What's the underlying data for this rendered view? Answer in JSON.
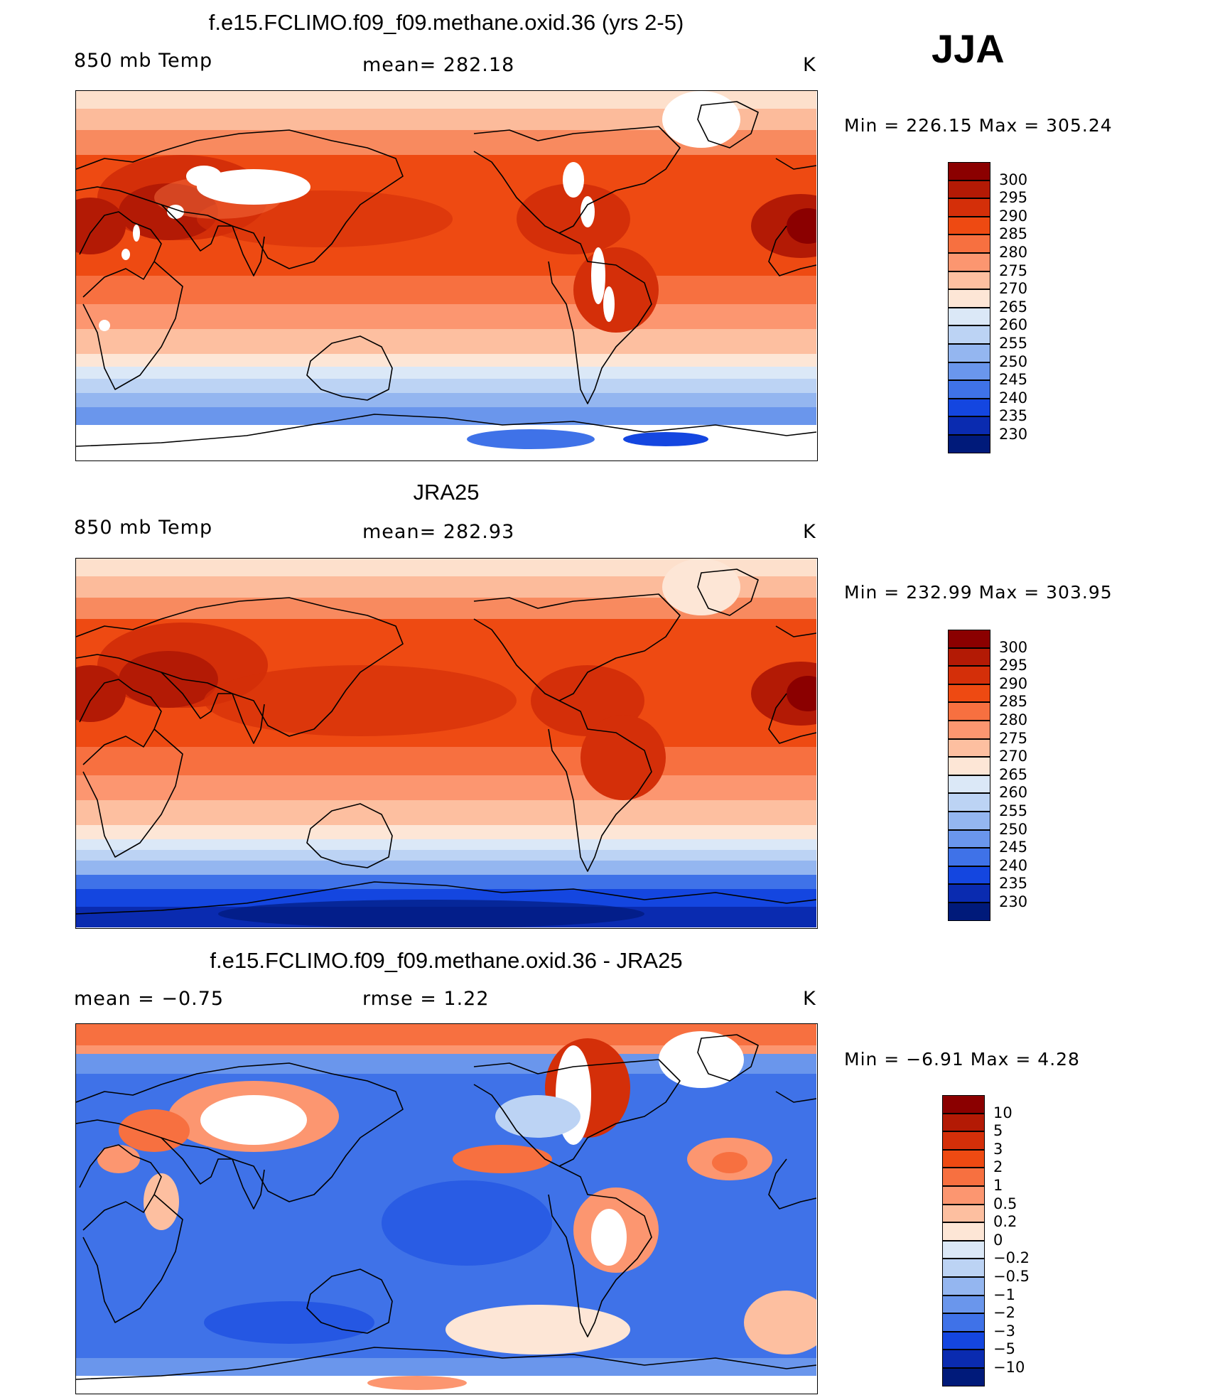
{
  "season": "JJA",
  "panels": [
    {
      "title": "f.e15.FCLIMO.f09_f09.methane.oxid.36 (yrs 2-5)",
      "left_label": "850 mb Temp",
      "center_label": "mean=  282.18",
      "right_label": "K",
      "minmax": "Min  =  226.15  Max  =  305.24",
      "colorbar": {
        "labels": [
          "300",
          "295",
          "290",
          "285",
          "280",
          "275",
          "270",
          "265",
          "260",
          "255",
          "250",
          "245",
          "240",
          "235",
          "230"
        ],
        "colors": [
          "#8b0000",
          "#b31a05",
          "#d42f09",
          "#ee4a12",
          "#f77040",
          "#fc9670",
          "#fdbfa0",
          "#fde6d6",
          "#dbe8f7",
          "#bcd3f4",
          "#94b6f0",
          "#6a96ec",
          "#3f72e8",
          "#1446e0",
          "#0a2bb0",
          "#001a7a"
        ]
      },
      "map_type": "model"
    },
    {
      "title": "JRA25",
      "left_label": "850 mb Temp",
      "center_label": "mean=  282.93",
      "right_label": "K",
      "minmax": "Min  =  232.99  Max  =  303.95",
      "colorbar": {
        "labels": [
          "300",
          "295",
          "290",
          "285",
          "280",
          "275",
          "270",
          "265",
          "260",
          "255",
          "250",
          "245",
          "240",
          "235",
          "230"
        ],
        "colors": [
          "#8b0000",
          "#b31a05",
          "#d42f09",
          "#ee4a12",
          "#f77040",
          "#fc9670",
          "#fdbfa0",
          "#fde6d6",
          "#dbe8f7",
          "#bcd3f4",
          "#94b6f0",
          "#6a96ec",
          "#3f72e8",
          "#1446e0",
          "#0a2bb0",
          "#001a7a"
        ]
      },
      "map_type": "obs"
    },
    {
      "title": "f.e15.FCLIMO.f09_f09.methane.oxid.36 - JRA25",
      "left_label": "mean =    −0.75",
      "center_label": "rmse =      1.22",
      "right_label": "K",
      "minmax": "Min  =    −6.91  Max  =      4.28",
      "colorbar": {
        "labels": [
          "10",
          "5",
          "3",
          "2",
          "1",
          "0.5",
          "0.2",
          "0",
          "−0.2",
          "−0.5",
          "−1",
          "−2",
          "−3",
          "−5",
          "−10"
        ],
        "colors": [
          "#8b0000",
          "#b31a05",
          "#d42f09",
          "#ee4a12",
          "#f77040",
          "#fc9670",
          "#fdbfa0",
          "#fde6d6",
          "#dbe8f7",
          "#bcd3f4",
          "#94b6f0",
          "#6a96ec",
          "#3f72e8",
          "#1446e0",
          "#0a2bb0",
          "#001a7a"
        ]
      },
      "map_type": "diff"
    }
  ]
}
